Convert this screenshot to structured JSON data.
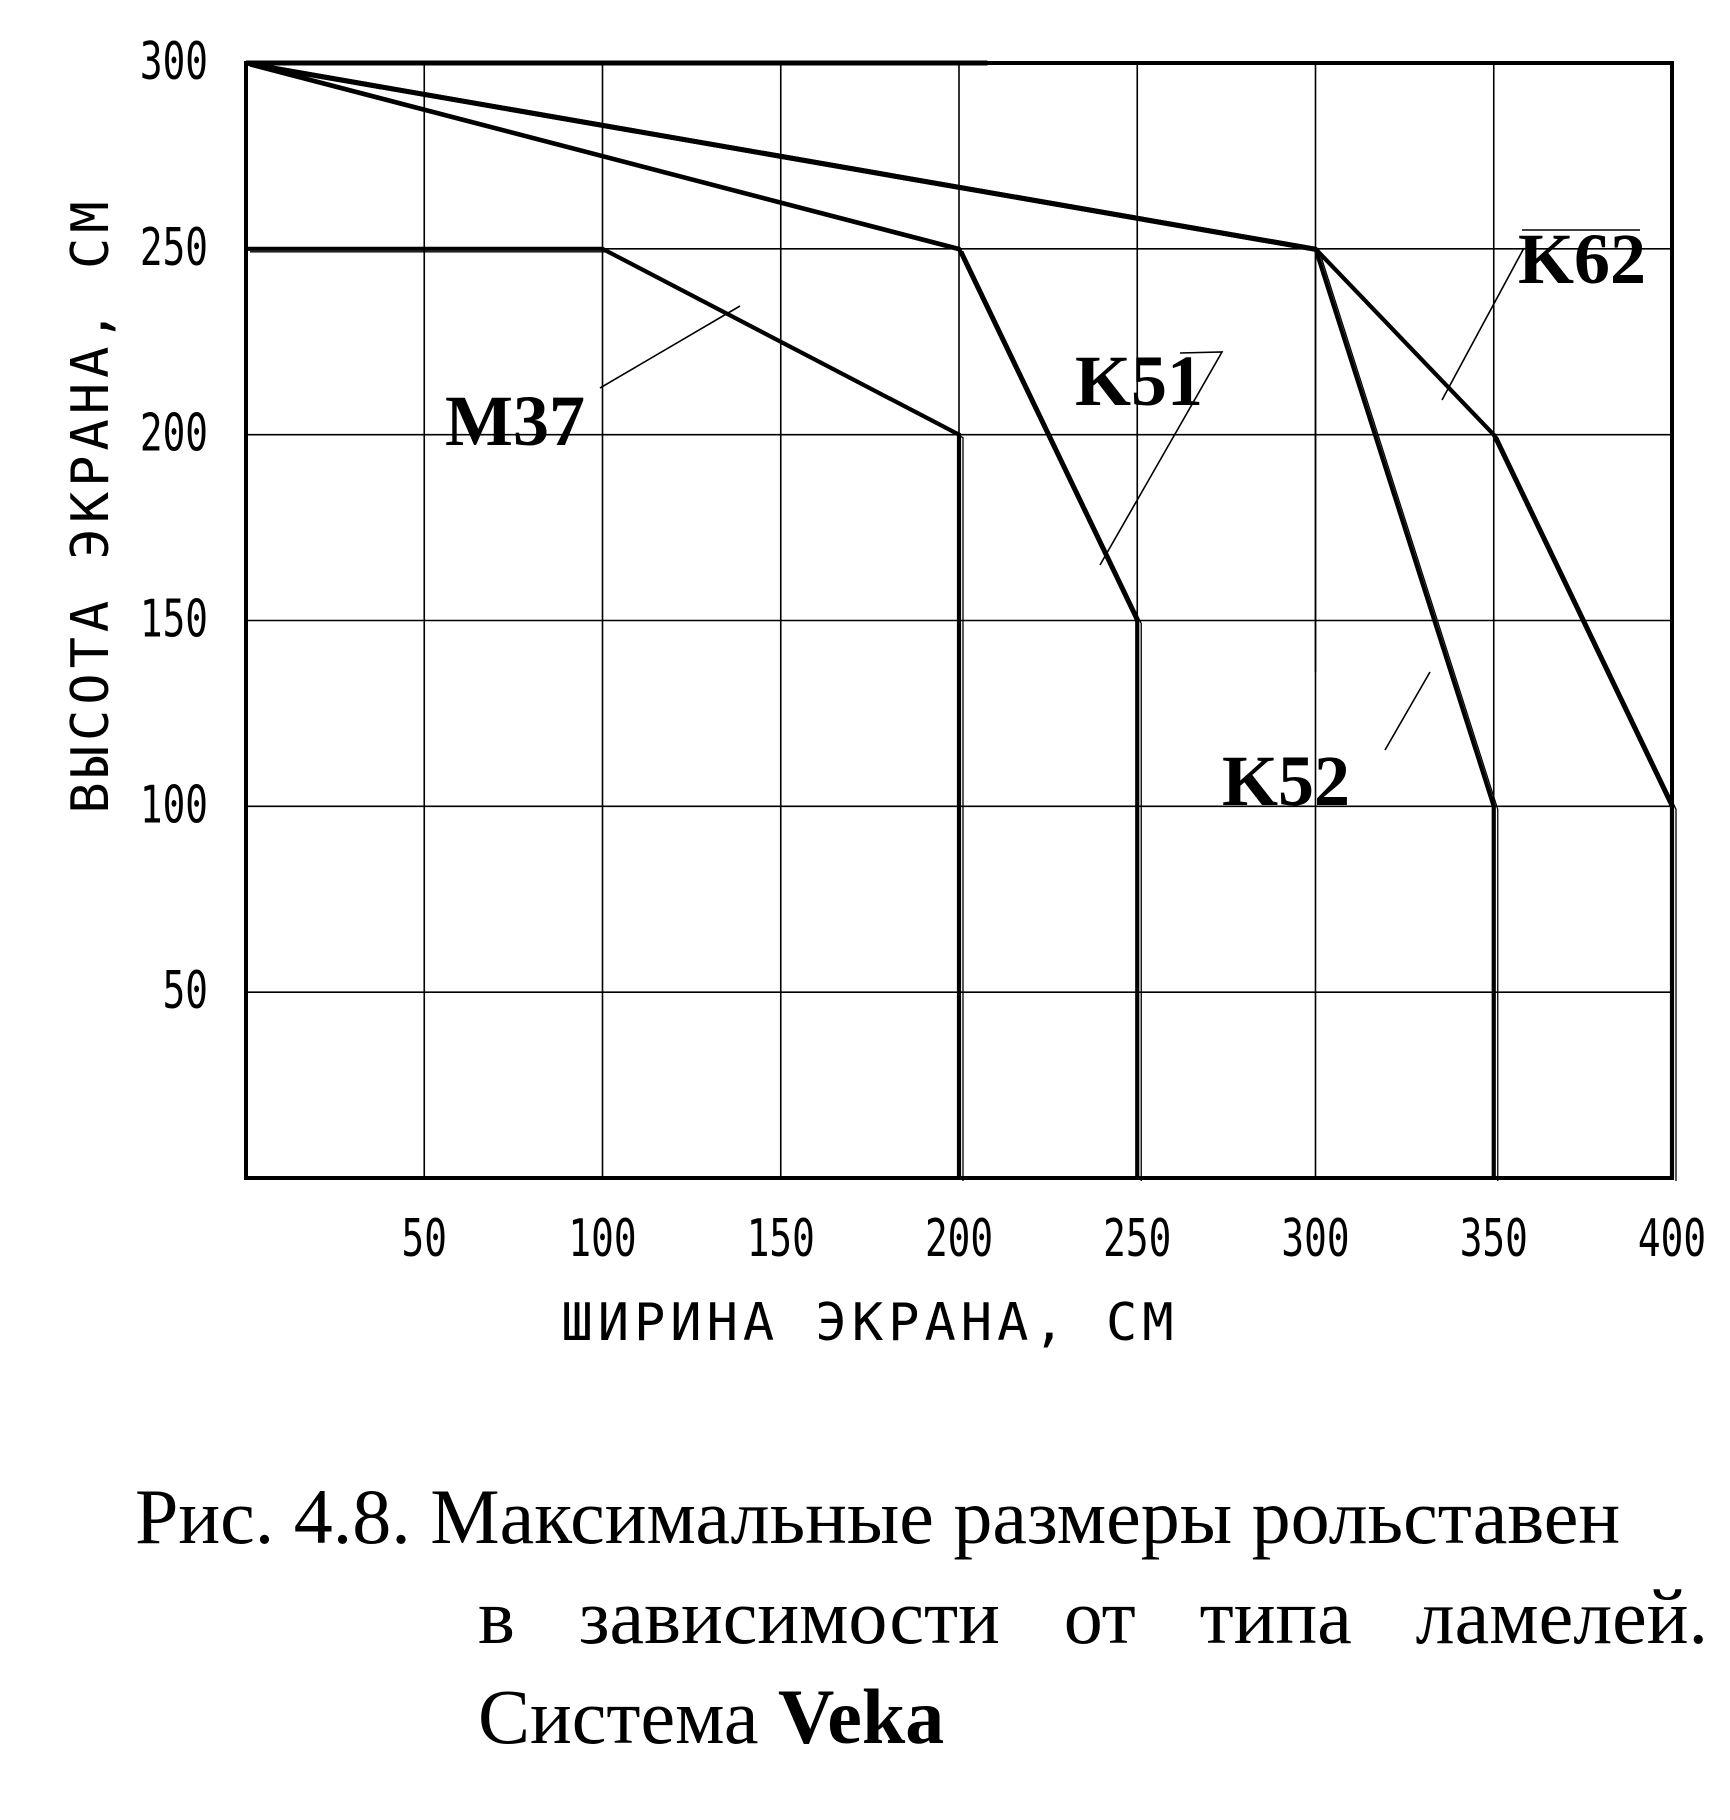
{
  "chart_data": {
    "type": "line",
    "title": "",
    "xlabel": "ШИРИНА ЭКРАНА,   СМ",
    "ylabel": "ВЫСОТА ЭКРАНА, СМ",
    "xlim": [
      0,
      400
    ],
    "ylim": [
      0,
      300
    ],
    "x_ticks": [
      50,
      100,
      150,
      200,
      250,
      300,
      350,
      400
    ],
    "y_ticks": [
      50,
      100,
      150,
      200,
      250,
      300
    ],
    "grid": true,
    "series": [
      {
        "name": "M37",
        "x": [
          0,
          100,
          200,
          200
        ],
        "y": [
          250,
          250,
          200,
          0
        ]
      },
      {
        "name": "K51",
        "x": [
          0,
          200,
          250,
          250
        ],
        "y": [
          300,
          250,
          150,
          0
        ]
      },
      {
        "name": "K52",
        "x": [
          0,
          300,
          350,
          350
        ],
        "y": [
          300,
          250,
          100,
          0
        ]
      },
      {
        "name": "K62",
        "x": [
          0,
          300,
          350,
          400,
          400
        ],
        "y": [
          300,
          250,
          200,
          100,
          0
        ]
      }
    ],
    "colors": {
      "line": "#000000",
      "grid": "#000000",
      "background": "#ffffff"
    }
  },
  "caption": {
    "line1": "Рис. 4.8. Максимальные размеры рольставен",
    "line2": "в зависимости от типа ламелей.",
    "line3_prefix": "Система ",
    "line3_bold": "Veka"
  }
}
